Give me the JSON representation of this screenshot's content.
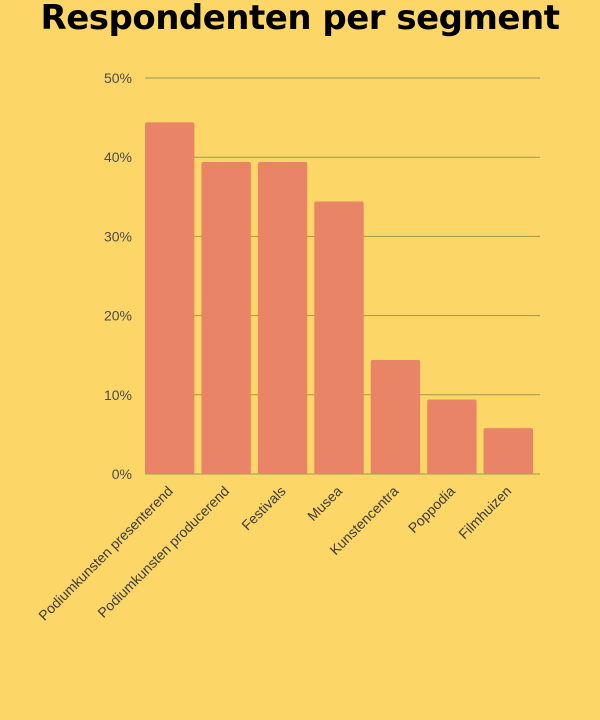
{
  "chart_data": {
    "type": "bar",
    "title": "Respondenten per segment",
    "xlabel": "",
    "ylabel": "",
    "categories": [
      "Podiumkunsten presenterend",
      "Podiumkunsten producerend",
      "Festivals",
      "Musea",
      "Kunstencentra",
      "Poppodia",
      "Filmhuizen"
    ],
    "values": [
      44.4,
      39.4,
      39.4,
      34.4,
      14.4,
      9.4,
      5.8
    ],
    "ylim": [
      0,
      50
    ],
    "yticks": [
      0,
      10,
      20,
      30,
      40,
      50
    ],
    "ytick_labels": [
      "0%",
      "10%",
      "20%",
      "30%",
      "40%",
      "50%"
    ],
    "grid": true,
    "colors": {
      "background": "#FCD767",
      "bar": "#E98566",
      "grid": "#9C9A4E"
    }
  }
}
